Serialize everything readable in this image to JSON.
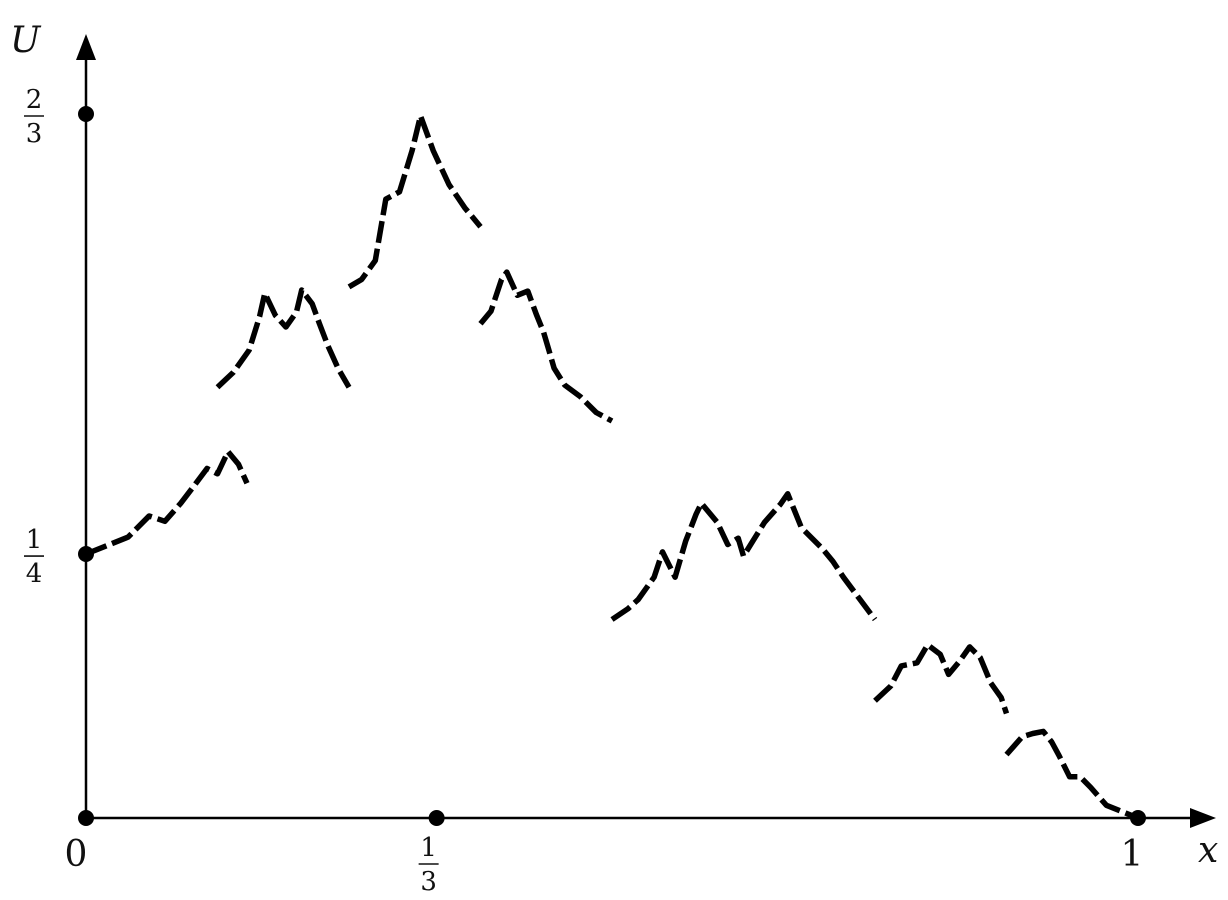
{
  "chart_data": {
    "type": "line",
    "title": "",
    "xlabel": "x",
    "ylabel": "U",
    "xlim": [
      0,
      1
    ],
    "ylim": [
      0,
      0.6667
    ],
    "x_ticks": [
      {
        "value": 0,
        "label": "0"
      },
      {
        "value": 0.3333,
        "num": "1",
        "den": "3"
      },
      {
        "value": 1,
        "label": "1"
      }
    ],
    "y_ticks": [
      {
        "value": 0.25,
        "num": "1",
        "den": "4"
      },
      {
        "value": 0.6667,
        "num": "2",
        "den": "3"
      }
    ],
    "marked_points": [
      {
        "x": 0,
        "y": 0
      },
      {
        "x": 0.3333,
        "y": 0
      },
      {
        "x": 1,
        "y": 0
      },
      {
        "x": 0,
        "y": 0.25
      },
      {
        "x": 0,
        "y": 0.6667
      }
    ],
    "series": [
      {
        "style": "fractal-dashed",
        "segments": [
          [
            [
              0.0,
              0.25
            ],
            [
              0.02,
              0.258
            ],
            [
              0.04,
              0.266
            ],
            [
              0.06,
              0.286
            ],
            [
              0.075,
              0.281
            ],
            [
              0.09,
              0.298
            ],
            [
              0.1,
              0.311
            ],
            [
              0.115,
              0.331
            ],
            [
              0.125,
              0.326
            ],
            [
              0.135,
              0.347
            ],
            [
              0.145,
              0.335
            ],
            [
              0.153,
              0.317
            ]
          ],
          [
            [
              0.125,
              0.408
            ],
            [
              0.14,
              0.422
            ],
            [
              0.155,
              0.443
            ],
            [
              0.165,
              0.475
            ],
            [
              0.17,
              0.497
            ],
            [
              0.18,
              0.476
            ],
            [
              0.19,
              0.465
            ],
            [
              0.2,
              0.479
            ],
            [
              0.205,
              0.5
            ],
            [
              0.215,
              0.487
            ],
            [
              0.222,
              0.468
            ],
            [
              0.23,
              0.447
            ],
            [
              0.24,
              0.425
            ],
            [
              0.25,
              0.408
            ]
          ],
          [
            [
              0.25,
              0.503
            ],
            [
              0.262,
              0.51
            ],
            [
              0.275,
              0.528
            ],
            [
              0.285,
              0.586
            ],
            [
              0.298,
              0.593
            ],
            [
              0.31,
              0.632
            ],
            [
              0.318,
              0.665
            ],
            [
              0.33,
              0.632
            ],
            [
              0.345,
              0.6
            ],
            [
              0.36,
              0.578
            ],
            [
              0.375,
              0.56
            ]
          ],
          [
            [
              0.375,
              0.468
            ],
            [
              0.385,
              0.48
            ],
            [
              0.395,
              0.51
            ],
            [
              0.4,
              0.517
            ],
            [
              0.41,
              0.495
            ],
            [
              0.42,
              0.499
            ],
            [
              0.428,
              0.477
            ],
            [
              0.435,
              0.46
            ],
            [
              0.44,
              0.443
            ],
            [
              0.445,
              0.426
            ],
            [
              0.455,
              0.41
            ],
            [
              0.47,
              0.399
            ],
            [
              0.485,
              0.384
            ],
            [
              0.5,
              0.376
            ]
          ],
          [
            [
              0.5,
              0.188
            ],
            [
              0.515,
              0.198
            ],
            [
              0.525,
              0.207
            ],
            [
              0.54,
              0.228
            ],
            [
              0.548,
              0.252
            ],
            [
              0.56,
              0.228
            ],
            [
              0.57,
              0.262
            ],
            [
              0.58,
              0.288
            ],
            [
              0.585,
              0.298
            ],
            [
              0.6,
              0.28
            ],
            [
              0.61,
              0.259
            ],
            [
              0.62,
              0.265
            ],
            [
              0.625,
              0.248
            ],
            [
              0.635,
              0.264
            ],
            [
              0.645,
              0.28
            ],
            [
              0.66,
              0.297
            ],
            [
              0.667,
              0.307
            ],
            [
              0.68,
              0.275
            ],
            [
              0.69,
              0.265
            ],
            [
              0.7,
              0.255
            ],
            [
              0.71,
              0.243
            ],
            [
              0.72,
              0.228
            ],
            [
              0.735,
              0.208
            ],
            [
              0.75,
              0.188
            ]
          ],
          [
            [
              0.75,
              0.111
            ],
            [
              0.765,
              0.125
            ],
            [
              0.775,
              0.144
            ],
            [
              0.79,
              0.147
            ],
            [
              0.8,
              0.164
            ],
            [
              0.812,
              0.155
            ],
            [
              0.82,
              0.136
            ],
            [
              0.83,
              0.148
            ],
            [
              0.84,
              0.162
            ],
            [
              0.85,
              0.152
            ],
            [
              0.86,
              0.128
            ],
            [
              0.87,
              0.114
            ],
            [
              0.875,
              0.099
            ]
          ],
          [
            [
              0.875,
              0.06
            ],
            [
              0.89,
              0.077
            ],
            [
              0.9,
              0.08
            ],
            [
              0.91,
              0.082
            ],
            [
              0.918,
              0.072
            ],
            [
              0.925,
              0.059
            ],
            [
              0.935,
              0.039
            ],
            [
              0.945,
              0.039
            ],
            [
              0.955,
              0.029
            ],
            [
              0.97,
              0.012
            ],
            [
              0.985,
              0.006
            ],
            [
              1.0,
              0.0
            ]
          ]
        ]
      }
    ]
  }
}
